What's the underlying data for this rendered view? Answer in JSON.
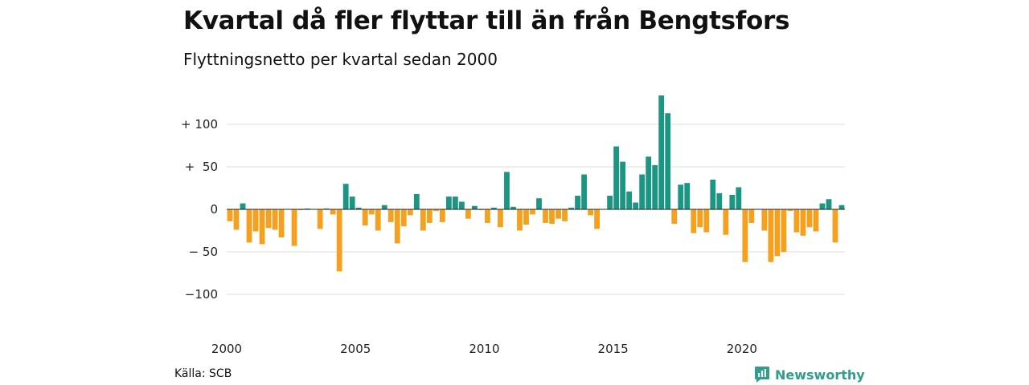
{
  "colors": {
    "positive": "#1a9683",
    "negative": "#f5a11f",
    "gridline": "#dddddd",
    "zero_line": "#222222",
    "brand": "#2f9e8a"
  },
  "footer": {
    "source": "Källa: SCB",
    "brand": "Newsworthy",
    "brand_icon": "newsworthy-logo-icon"
  },
  "chart_data": {
    "type": "bar",
    "title": "Kvartal då fler flyttar till än från Bengtsfors",
    "subtitle": "Flyttningsnetto per kvartal sedan 2000",
    "xlabel": "",
    "ylabel": "",
    "ylim": [
      -140,
      140
    ],
    "y_ticks": [
      100,
      50,
      0,
      -50,
      -100
    ],
    "y_tick_labels": [
      "+ 100",
      "+  50",
      "0",
      "− 50",
      "−100"
    ],
    "x_tick_labels": [
      "2000",
      "2005",
      "2010",
      "2015",
      "2020"
    ],
    "x_tick_positions": [
      0,
      20,
      40,
      60,
      80
    ],
    "grid": true,
    "categories": [
      "2000 K1",
      "2000 K2",
      "2000 K3",
      "2000 K4",
      "2001 K1",
      "2001 K2",
      "2001 K3",
      "2001 K4",
      "2002 K1",
      "2002 K2",
      "2002 K3",
      "2002 K4",
      "2003 K1",
      "2003 K2",
      "2003 K3",
      "2003 K4",
      "2004 K1",
      "2004 K2",
      "2004 K3",
      "2004 K4",
      "2005 K1",
      "2005 K2",
      "2005 K3",
      "2005 K4",
      "2006 K1",
      "2006 K2",
      "2006 K3",
      "2006 K4",
      "2007 K1",
      "2007 K2",
      "2007 K3",
      "2007 K4",
      "2008 K1",
      "2008 K2",
      "2008 K3",
      "2008 K4",
      "2009 K1",
      "2009 K2",
      "2009 K3",
      "2009 K4",
      "2010 K1",
      "2010 K2",
      "2010 K3",
      "2010 K4",
      "2011 K1",
      "2011 K2",
      "2011 K3",
      "2011 K4",
      "2012 K1",
      "2012 K2",
      "2012 K3",
      "2012 K4",
      "2013 K1",
      "2013 K2",
      "2013 K3",
      "2013 K4",
      "2014 K1",
      "2014 K2",
      "2014 K3",
      "2014 K4",
      "2015 K1",
      "2015 K2",
      "2015 K3",
      "2015 K4",
      "2016 K1",
      "2016 K2",
      "2016 K3",
      "2016 K4",
      "2017 K1",
      "2017 K2",
      "2017 K3",
      "2017 K4",
      "2018 K1",
      "2018 K2",
      "2018 K3",
      "2018 K4",
      "2019 K1",
      "2019 K2",
      "2019 K3",
      "2019 K4",
      "2020 K1",
      "2020 K2",
      "2020 K3",
      "2020 K4",
      "2021 K1",
      "2021 K2",
      "2021 K3",
      "2021 K4",
      "2022 K1",
      "2022 K2",
      "2022 K3",
      "2022 K4",
      "2023 K1",
      "2023 K2",
      "2023 K3",
      "2023 K4"
    ],
    "values": [
      -14,
      -24,
      7,
      -39,
      -26,
      -41,
      -22,
      -24,
      -33,
      0,
      -43,
      -1,
      1,
      0,
      -23,
      1,
      -6,
      -73,
      30,
      15,
      2,
      -19,
      -6,
      -25,
      5,
      -15,
      -40,
      -20,
      -7,
      18,
      -25,
      -16,
      -2,
      -15,
      15,
      15,
      9,
      -11,
      4,
      -1,
      -16,
      2,
      -21,
      44,
      3,
      -25,
      -18,
      -6,
      13,
      -16,
      -17,
      -11,
      -14,
      2,
      16,
      41,
      -7,
      -23,
      0,
      16,
      74,
      56,
      21,
      8,
      41,
      62,
      52,
      134,
      113,
      -17,
      29,
      31,
      -28,
      -21,
      -27,
      35,
      19,
      -30,
      17,
      26,
      -62,
      -16,
      0,
      -25,
      -62,
      -55,
      -50,
      -2,
      -27,
      -31,
      -21,
      -26,
      7,
      12,
      -39,
      5
    ]
  }
}
